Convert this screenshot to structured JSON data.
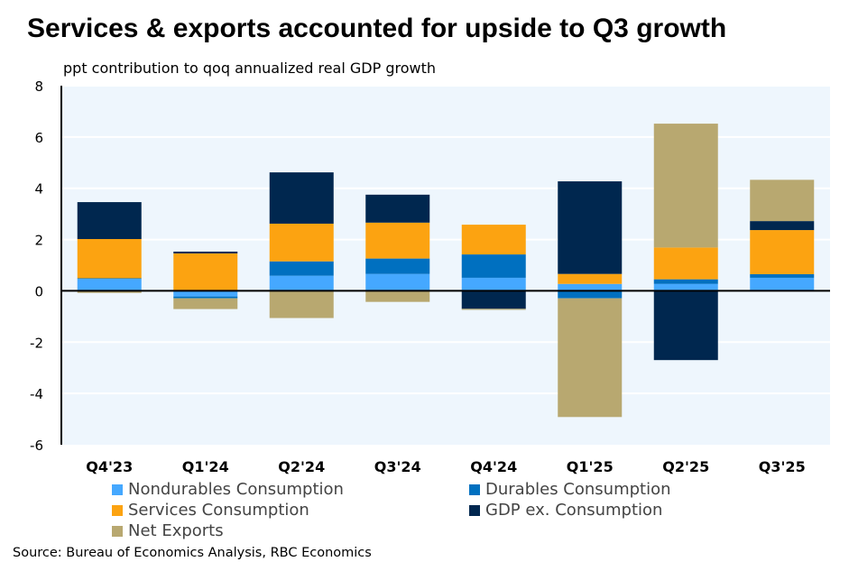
{
  "chart_data": {
    "type": "bar",
    "stacked": true,
    "title": "Services & exports accounted for upside to Q3 growth",
    "ylabel": "ppt contribution to qoq annualized real GDP growth",
    "xlabel": "",
    "ylim": [
      -6,
      8
    ],
    "yticks": [
      -6,
      -4,
      -2,
      0,
      2,
      4,
      6,
      8
    ],
    "grid": true,
    "legend_position": "bottom",
    "categories": [
      "Q4'23",
      "Q1'24",
      "Q2'24",
      "Q3'24",
      "Q4'24",
      "Q1'25",
      "Q2'25",
      "Q3'25"
    ],
    "series": [
      {
        "name": "Nondurables Consumption",
        "color": "#45a8ff",
        "values": [
          0.47,
          -0.22,
          0.59,
          0.66,
          0.51,
          0.27,
          0.27,
          0.51
        ]
      },
      {
        "name": "Durables Consumption",
        "color": "#0070c0",
        "values": [
          0.02,
          -0.07,
          0.56,
          0.6,
          0.91,
          -0.29,
          0.18,
          0.14
        ]
      },
      {
        "name": "Services Consumption",
        "color": "#fca311",
        "values": [
          1.53,
          1.46,
          1.47,
          1.4,
          1.16,
          0.39,
          1.24,
          1.72
        ]
      },
      {
        "name": "GDP ex. Consumption",
        "color": "#00274f",
        "values": [
          1.44,
          0.07,
          2.0,
          1.09,
          -0.7,
          3.61,
          -2.7,
          0.35
        ]
      },
      {
        "name": "Net Exports",
        "color": "#b8a870",
        "values": [
          -0.08,
          -0.42,
          -1.06,
          -0.43,
          -0.04,
          -4.63,
          4.83,
          1.61
        ]
      }
    ],
    "source": "Source: Bureau of Economics Analysis, RBC Economics"
  }
}
